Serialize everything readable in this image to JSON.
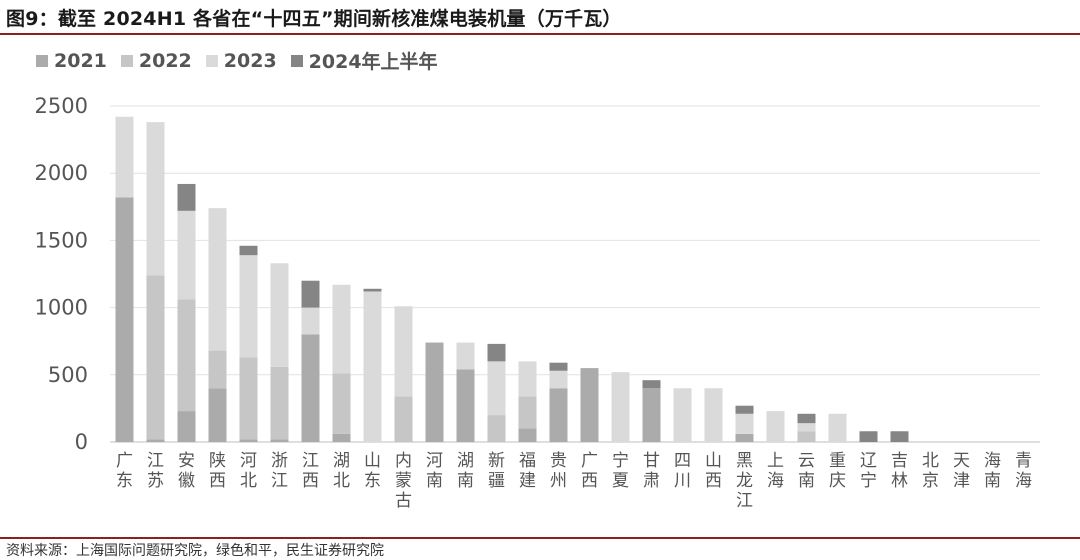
{
  "title": "图9：截至 2024H1 各省在“十四五”期间新核准煤电装机量（万千瓦）",
  "source": "资料来源：上海国际问题研究院，绿色和平，民生证券研究院",
  "chart_data": {
    "type": "bar",
    "stacked": true,
    "title": "图9：截至 2024H1 各省在“十四五”期间新核准煤电装机量（万千瓦）",
    "xlabel": "",
    "ylabel": "",
    "ylim": [
      0,
      2500
    ],
    "yticks": [
      0,
      500,
      1000,
      1500,
      2000,
      2500
    ],
    "grid": true,
    "legend_position": "top-left",
    "categories": [
      "广东",
      "江苏",
      "安徽",
      "陕西",
      "河北",
      "浙江",
      "江西",
      "湖北",
      "山东",
      "内蒙古",
      "河南",
      "湖南",
      "新疆",
      "福建",
      "贵州",
      "广西",
      "宁夏",
      "甘肃",
      "四川",
      "山西",
      "黑龙江",
      "上海",
      "云南",
      "重庆",
      "辽宁",
      "吉林",
      "北京",
      "天津",
      "海南",
      "青海"
    ],
    "series": [
      {
        "name": "2021",
        "color": "#ababab",
        "values": [
          1820,
          20,
          230,
          400,
          20,
          20,
          800,
          60,
          0,
          0,
          740,
          540,
          0,
          100,
          400,
          550,
          0,
          400,
          0,
          0,
          60,
          0,
          0,
          0,
          0,
          0,
          0,
          0,
          0,
          0
        ]
      },
      {
        "name": "2022",
        "color": "#c6c6c6",
        "values": [
          0,
          1220,
          830,
          280,
          610,
          540,
          0,
          450,
          0,
          340,
          0,
          0,
          200,
          240,
          0,
          0,
          0,
          0,
          0,
          0,
          0,
          0,
          80,
          0,
          0,
          0,
          0,
          0,
          0,
          0
        ]
      },
      {
        "name": "2023",
        "color": "#dadada",
        "values": [
          600,
          1140,
          660,
          1060,
          760,
          770,
          200,
          660,
          1120,
          670,
          0,
          200,
          400,
          260,
          130,
          0,
          520,
          0,
          400,
          400,
          150,
          230,
          60,
          210,
          0,
          0,
          0,
          0,
          0,
          0
        ]
      },
      {
        "name": "2024年上半年",
        "color": "#858585",
        "values": [
          0,
          0,
          200,
          0,
          70,
          0,
          200,
          0,
          20,
          0,
          0,
          0,
          130,
          0,
          60,
          0,
          0,
          60,
          0,
          0,
          60,
          0,
          70,
          0,
          80,
          80,
          0,
          0,
          0,
          0
        ]
      }
    ]
  }
}
